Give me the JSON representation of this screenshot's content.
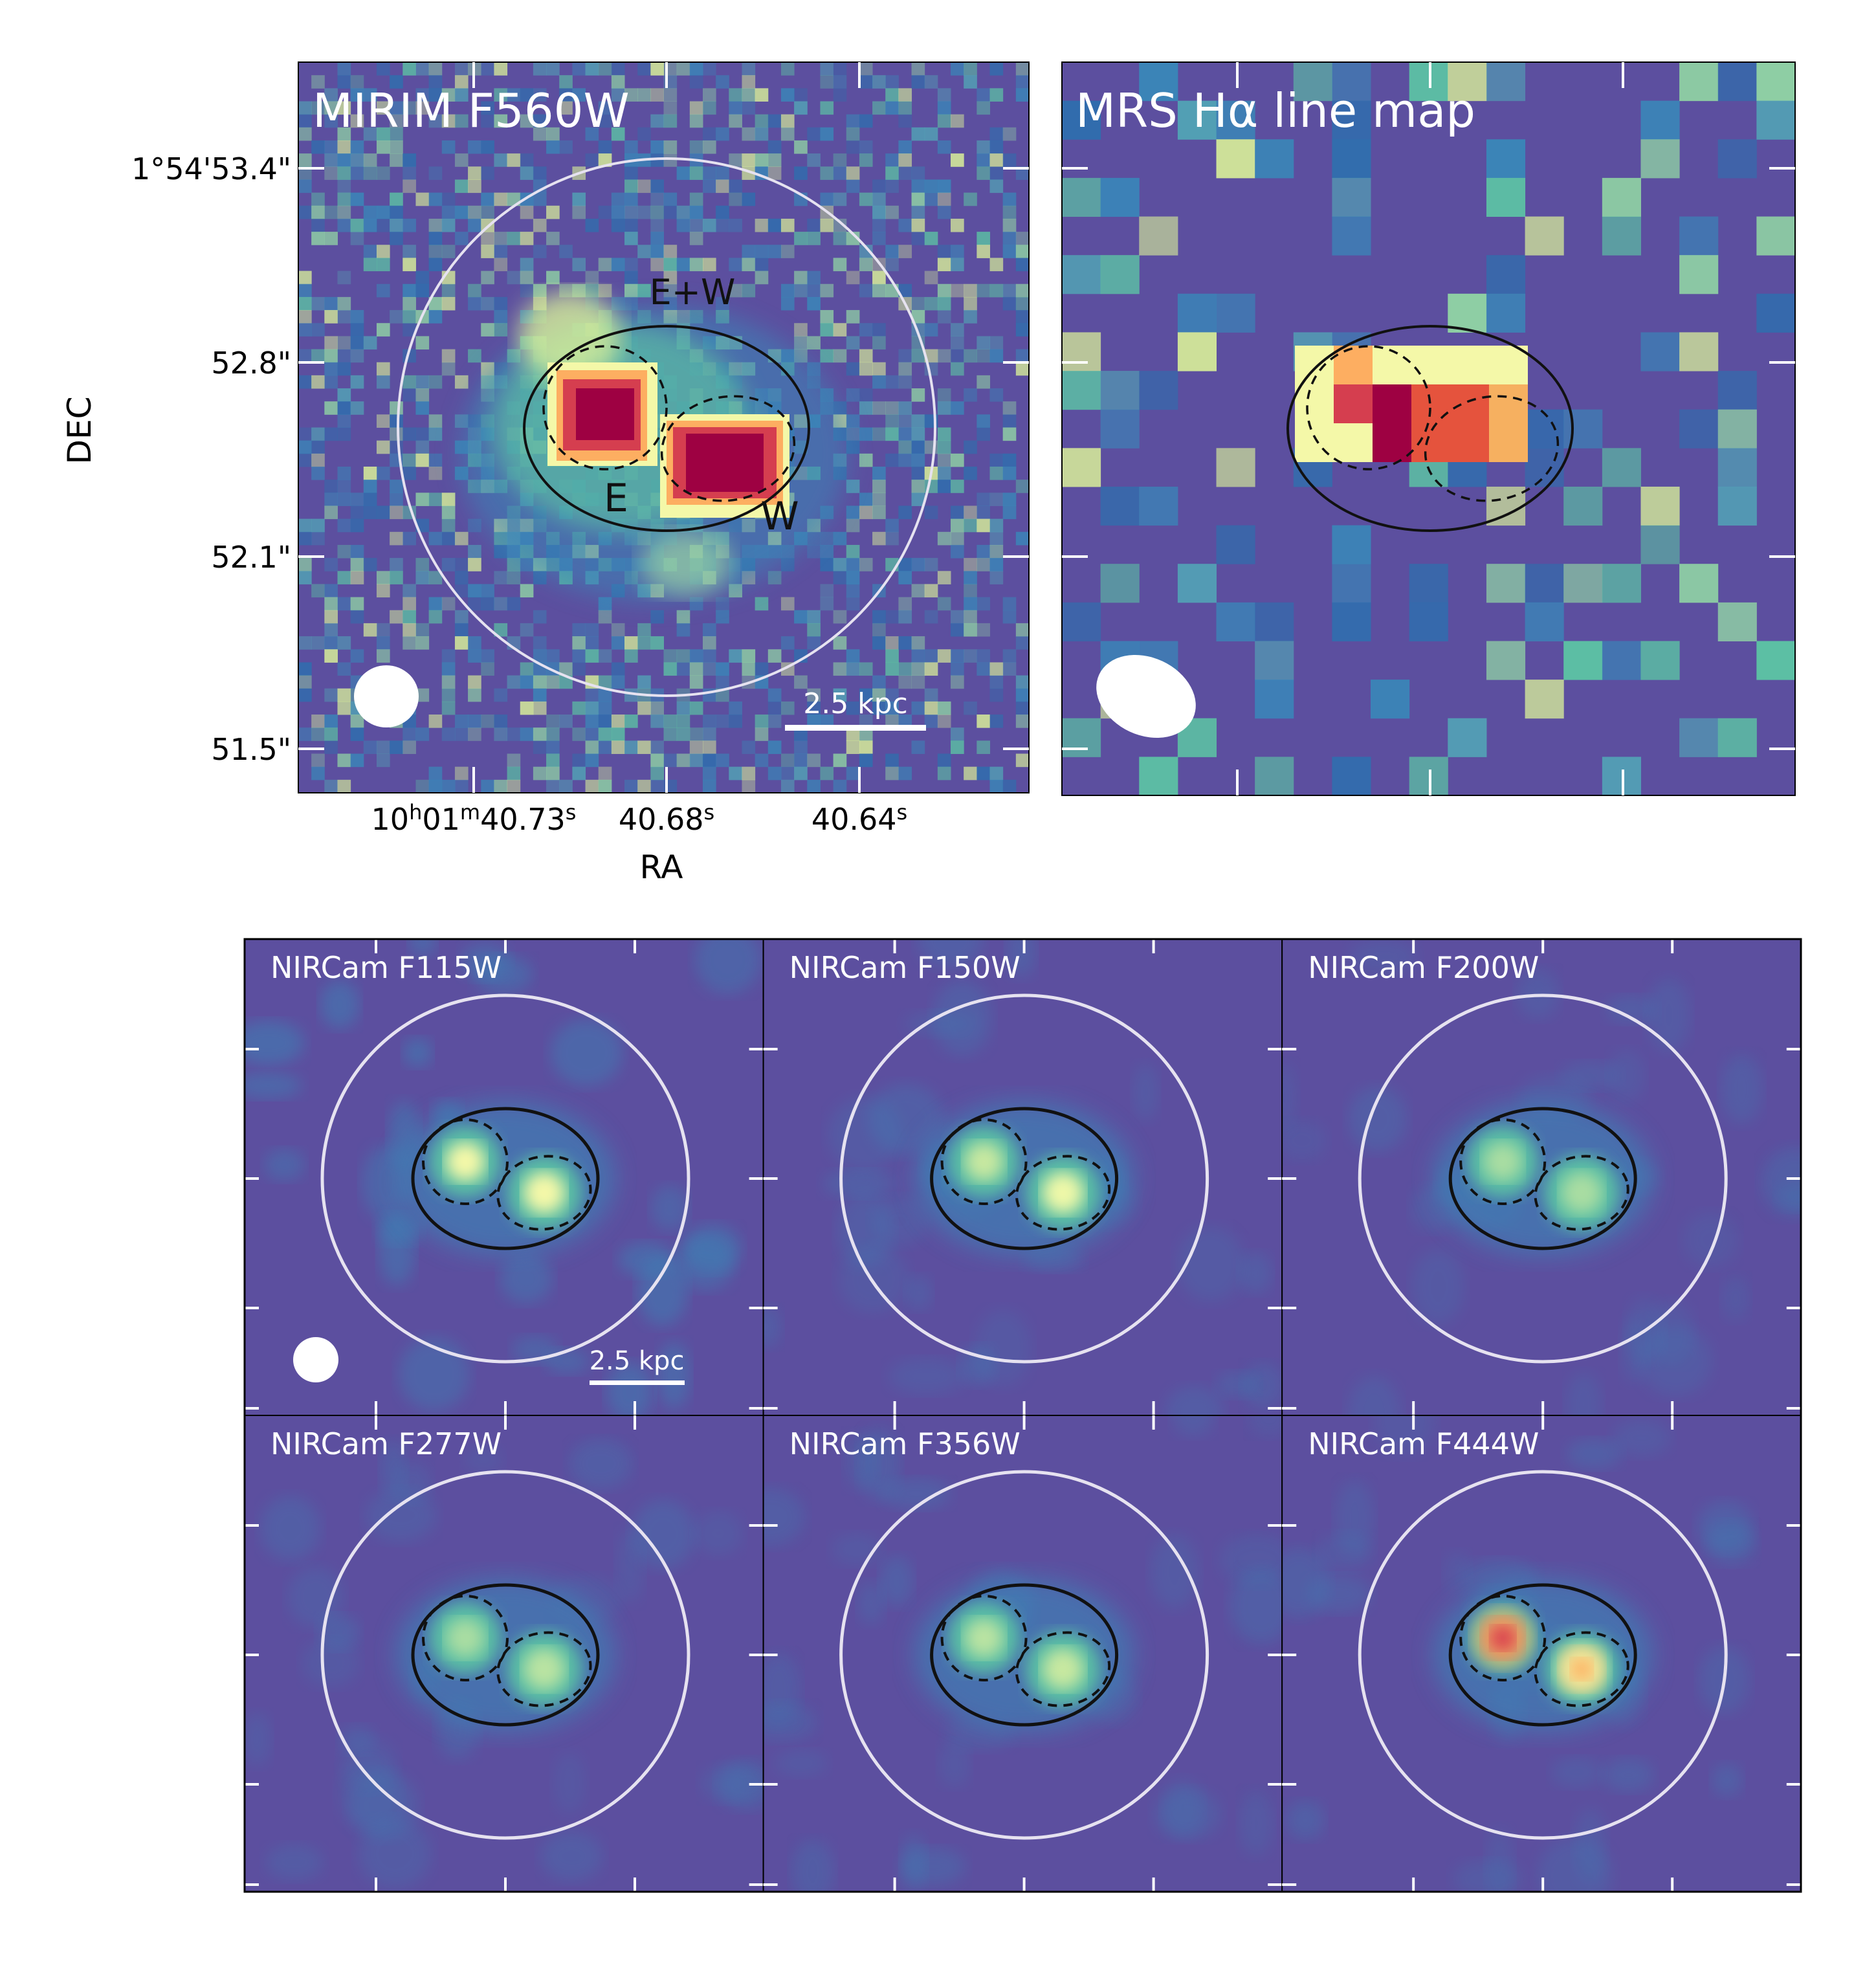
{
  "top_panels": {
    "mirim": {
      "title": "MIRIM F560W",
      "labels": {
        "ew": "E+W",
        "e": "E",
        "w": "W"
      },
      "scalebar": "2.5 kpc"
    },
    "mrs": {
      "title": "MRS Hα line map"
    }
  },
  "axes": {
    "dec_label": "DEC",
    "ra_label": "RA",
    "dec_ticks": [
      "1°54'53.4\"",
      "52.8\"",
      "52.1\"",
      "51.5\""
    ],
    "ra_ticks": [
      {
        "main": "10",
        "sup1": "h",
        "mid": "01",
        "sup2": "m",
        "end": "40.73",
        "sup3": "s"
      },
      {
        "main": "40.68",
        "sup": "s"
      },
      {
        "main": "40.64",
        "sup": "s"
      }
    ]
  },
  "nircam_panels": [
    {
      "title": "NIRCam F115W"
    },
    {
      "title": "NIRCam F150W"
    },
    {
      "title": "NIRCam F200W"
    },
    {
      "title": "NIRCam F277W"
    },
    {
      "title": "NIRCam F356W"
    },
    {
      "title": "NIRCam F444W"
    }
  ],
  "nircam_scalebar": "2.5 kpc",
  "colors": {
    "background": "#5c4f9f",
    "aperture": "#e6e2f0",
    "ellipse": "#111111"
  }
}
